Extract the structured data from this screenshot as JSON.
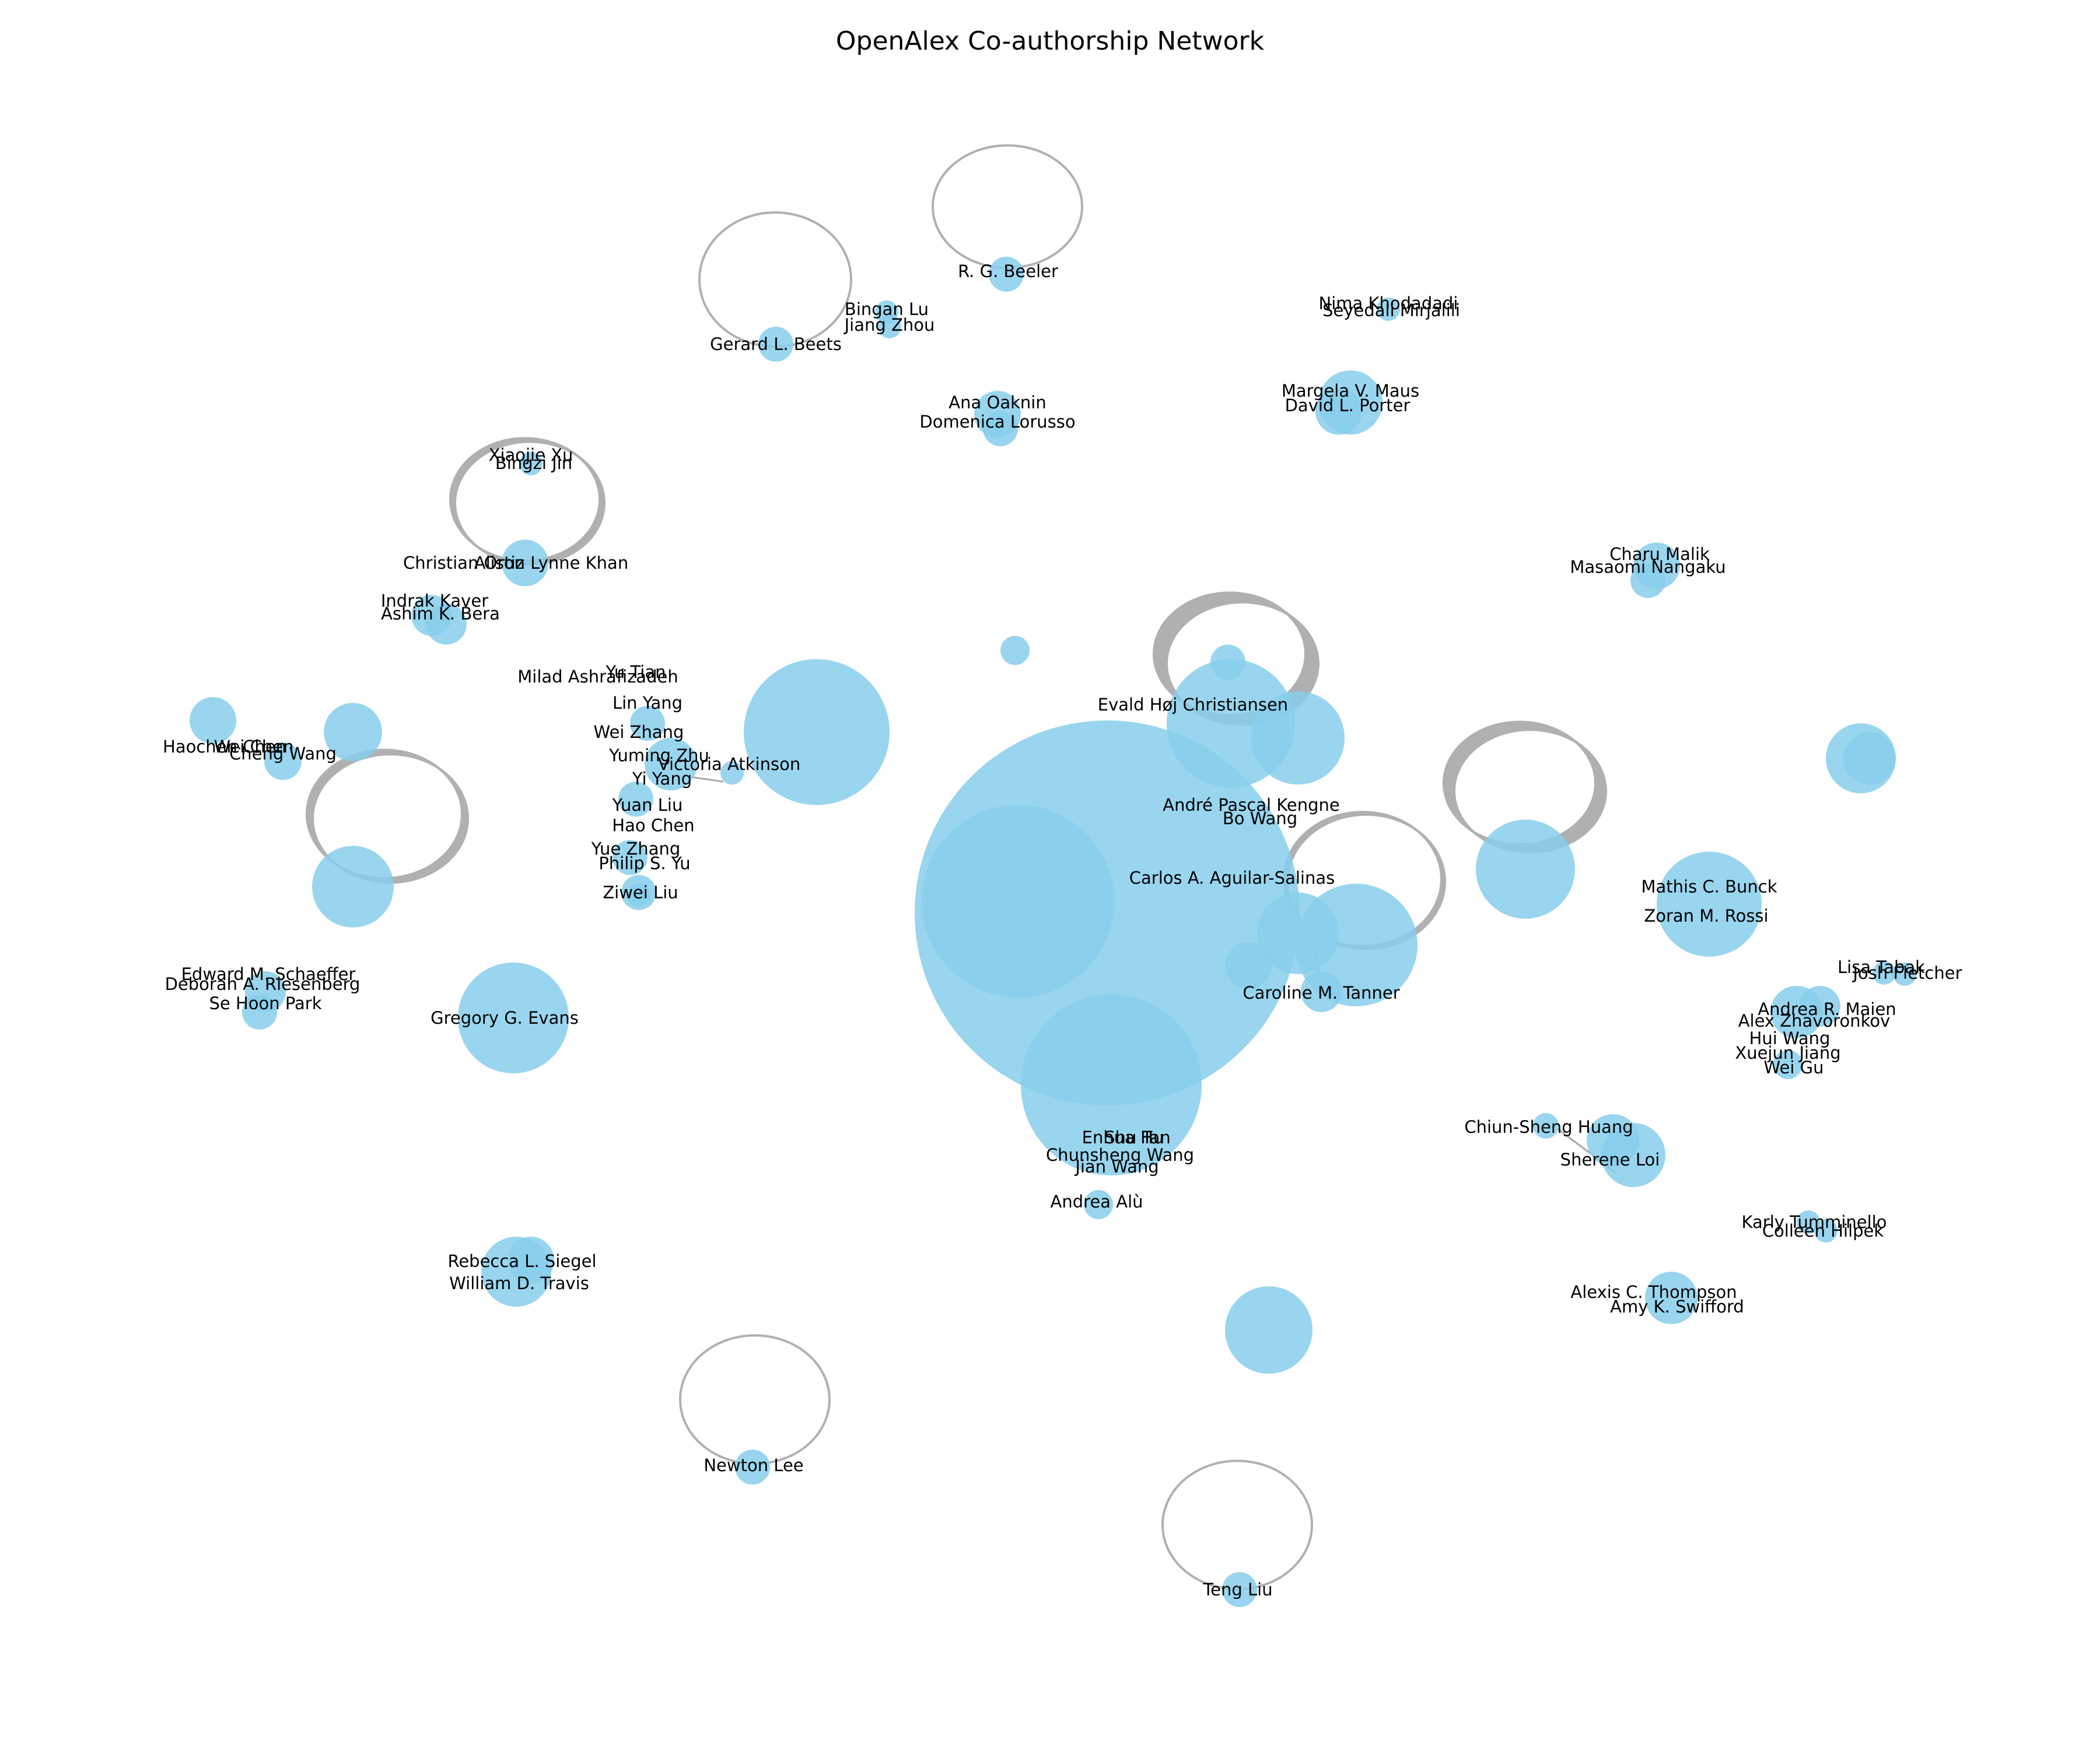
{
  "title": "OpenAlex Co-authorship Network",
  "colors": {
    "node": "#87ceeb",
    "edge": "#a9a9a9",
    "label": "#000000"
  },
  "labels": [
    "R. G. Beeler",
    "Gerard L. Beets",
    "Bingan Lu",
    "Jiang Zhou",
    "Nima Khodadadi",
    "Seyedali Mirjalili",
    "Ana Oaknin",
    "Domenica Lorusso",
    "Margela V. Maus",
    "David L. Porter",
    "Xiaojie Xu",
    "Bingzi Jin",
    "Christian Ortiz",
    "Alison Lynne Khan",
    "Indrak Kaver",
    "Ashim K. Bera",
    "Charu Malik",
    "Masaomi Nangaku",
    "Milad Ashrafizadeh",
    "Yu Tian",
    "Lin Yang",
    "Wei Zhang",
    "Yuming Zhu",
    "Yi Yang",
    "Victoria Atkinson",
    "Yuan Liu",
    "Hao Chen",
    "Yue Zhang",
    "Philip S. Yu",
    "Ziwei Liu",
    "Evald Høj Christiansen",
    "André Pascal Kengne",
    "Bo Wang",
    "Carlos A. Aguilar-Salinas",
    "Mathis C. Bunck",
    "Zoran M. Rossi",
    "Haochen Chen",
    "Wei Chen",
    "Cheng Wang",
    "Edward M. Schaeffer",
    "Deborah A. Riesenberg",
    "Se Hoon Park",
    "Caroline M. Tanner",
    "Lisa Tabak",
    "Josh Fletcher",
    "Andrea R. Maien",
    "Alex Zhavoronkov",
    "Hui Wang",
    "Xuejun Jiang",
    "Wei Gu",
    "Chiun-Sheng Huang",
    "Sherene Loi",
    "Karly Tumminello",
    "Colleen Hilpek",
    "Alexis C. Thompson",
    "Amy K. Swifford",
    "Enhua Hu",
    "Shu Tan",
    "Chunsheng Wang",
    "Jian Wang",
    "Andrea Alù",
    "Rebecca L. Siegel",
    "William D. Travis",
    "Newton Lee",
    "Teng Liu",
    "Gregory G. Evans"
  ]
}
